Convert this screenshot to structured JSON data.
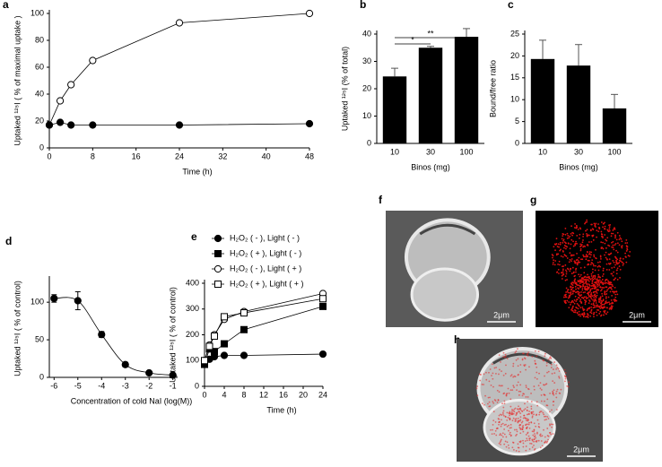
{
  "chart_data": [
    {
      "type": "line",
      "panel": "a",
      "xlabel": "Time (h)",
      "ylabel": "Uptaked ¹²⁵I ( % of maximal uptake )",
      "xlim": [
        0,
        48
      ],
      "xticks": [
        0,
        8,
        16,
        24,
        32,
        40,
        48
      ],
      "ylim": [
        0,
        100
      ],
      "yticks": [
        0,
        20,
        40,
        60,
        80,
        100
      ],
      "x": [
        0,
        2,
        4,
        8,
        24,
        48
      ],
      "series": [
        {
          "name": "open",
          "color": "#000000",
          "marker": "circle",
          "filled": false,
          "values": [
            17,
            35,
            47,
            65,
            93,
            100
          ]
        },
        {
          "name": "filled",
          "color": "#000000",
          "marker": "circle",
          "filled": true,
          "values": [
            17,
            19,
            17,
            17,
            17,
            18
          ]
        }
      ]
    },
    {
      "type": "bar",
      "panel": "b",
      "xlabel": "Binos (mg)",
      "ylabel": "Uptaked ¹²⁵I (% of total)",
      "categories": [
        "10",
        "30",
        "100"
      ],
      "values": [
        24.5,
        35,
        39
      ],
      "errors": [
        3,
        0.5,
        3
      ],
      "color": "#000000",
      "ylim": [
        0,
        40
      ],
      "yticks": [
        0,
        10,
        20,
        30,
        40
      ],
      "annotations": [
        "*",
        "**"
      ]
    },
    {
      "type": "bar",
      "panel": "c",
      "xlabel": "Binos (mg)",
      "ylabel": "Bound/free ratio",
      "categories": [
        "10",
        "30",
        "100"
      ],
      "values": [
        19.3,
        17.8,
        8
      ],
      "errors": [
        4.3,
        4.8,
        3.2
      ],
      "color": "#000000",
      "ylim": [
        0,
        25
      ],
      "yticks": [
        0,
        5,
        10,
        15,
        20,
        25
      ]
    },
    {
      "type": "line",
      "panel": "d",
      "xlabel": "Concentration of cold NaI  (log(M))",
      "ylabel": "Uptaked ¹²⁵I ( % of control)",
      "xlim": [
        -6.2,
        -0.8
      ],
      "xticks": [
        -6,
        -5,
        -4,
        -3,
        -2,
        -1
      ],
      "ylim": [
        0,
        130
      ],
      "yticks": [
        0,
        50,
        100
      ],
      "x": [
        -6,
        -5,
        -4,
        -3,
        -2,
        -1
      ],
      "smooth": true,
      "series": [
        {
          "name": "control",
          "color": "#000000",
          "marker": "circle",
          "filled": true,
          "values": [
            105,
            102,
            57,
            17,
            6,
            3
          ],
          "errors": [
            5,
            12,
            4,
            3,
            1,
            1
          ]
        }
      ]
    },
    {
      "type": "line",
      "panel": "e",
      "xlabel": "Time (h)",
      "ylabel": "Uptaked ¹²⁵I  ( % of control)",
      "legend": true,
      "xlim": [
        0,
        24
      ],
      "xticks": [
        0,
        4,
        8,
        12,
        16,
        20,
        24
      ],
      "ylim": [
        0,
        400
      ],
      "yticks": [
        0,
        100,
        200,
        300,
        400
      ],
      "x": [
        0,
        1,
        2,
        4,
        8,
        24
      ],
      "series": [
        {
          "name": "H₂O₂ ( - ),  Light ( - )",
          "color": "#000000",
          "marker": "circle",
          "filled": true,
          "values": [
            100,
            105,
            115,
            120,
            120,
            125
          ]
        },
        {
          "name": "H₂O₂ ( + ),  Light ( - )",
          "color": "#000000",
          "marker": "square",
          "filled": true,
          "values": [
            85,
            145,
            135,
            165,
            220,
            310
          ]
        },
        {
          "name": "H₂O₂ ( - ),  Light ( + )",
          "color": "#000000",
          "marker": "circle",
          "filled": false,
          "values": [
            100,
            160,
            200,
            260,
            290,
            360
          ]
        },
        {
          "name": "H₂O₂ ( + ),  Light ( + )",
          "color": "#000000",
          "marker": "square",
          "filled": false,
          "values": [
            100,
            155,
            195,
            270,
            285,
            340
          ]
        }
      ]
    },
    {
      "type": "image",
      "panel": "f",
      "scale": "2μm",
      "style": "gray"
    },
    {
      "type": "image",
      "panel": "g",
      "scale": "2μm",
      "style": "red"
    },
    {
      "type": "image",
      "panel": "h",
      "scale": "2μm",
      "style": "merge"
    }
  ]
}
